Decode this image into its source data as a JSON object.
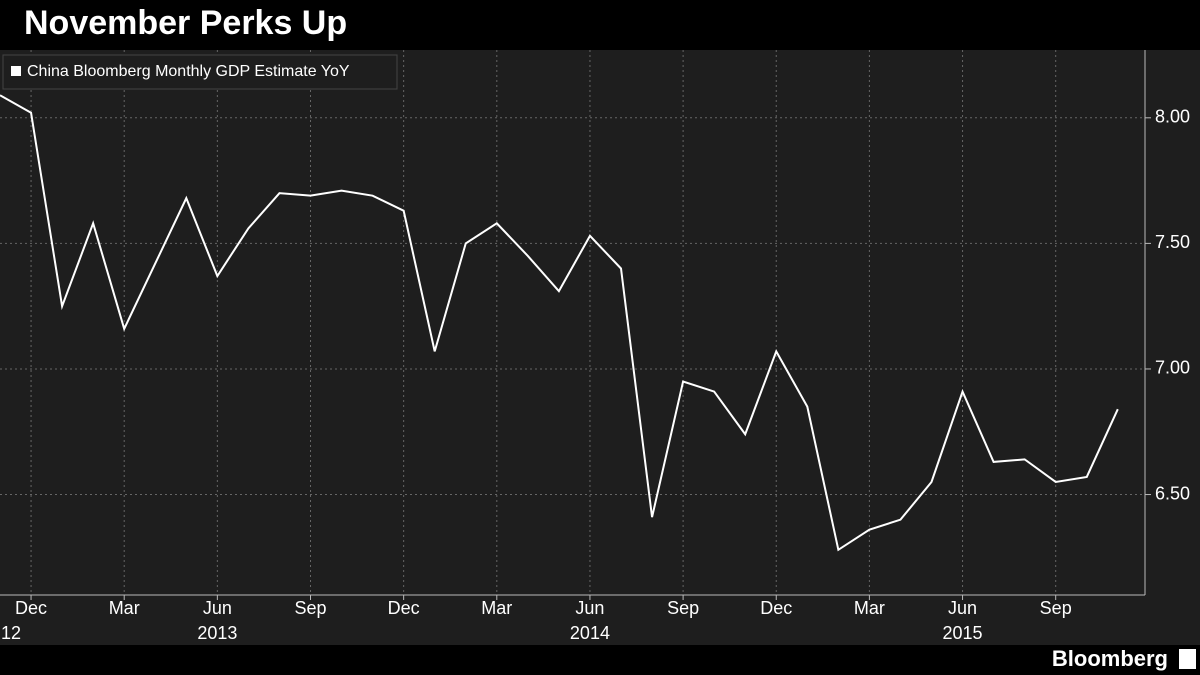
{
  "chart_data": {
    "type": "line",
    "title": "November Perks Up",
    "source": "Bloomberg",
    "categories": [
      null,
      "Dec",
      null,
      null,
      "Mar",
      null,
      null,
      "Jun",
      null,
      null,
      "Sep",
      null,
      null,
      "Dec",
      null,
      null,
      "Mar",
      null,
      null,
      "Jun",
      null,
      null,
      "Sep",
      null,
      null,
      "Dec",
      null,
      null,
      "Mar",
      null,
      null,
      "Jun",
      null,
      null,
      "Sep",
      null,
      null
    ],
    "years": [
      null,
      "12",
      null,
      null,
      null,
      null,
      null,
      "2013",
      null,
      null,
      null,
      null,
      null,
      null,
      null,
      null,
      null,
      null,
      null,
      "2014",
      null,
      null,
      null,
      null,
      null,
      null,
      null,
      null,
      null,
      null,
      null,
      "2015",
      null,
      null,
      null,
      null,
      null
    ],
    "series": [
      {
        "name": "China Bloomberg Monthly GDP Estimate YoY",
        "color": "#ffffff",
        "values": [
          8.09,
          8.02,
          7.25,
          7.58,
          7.16,
          7.42,
          7.68,
          7.37,
          7.56,
          7.7,
          7.69,
          7.71,
          7.69,
          7.63,
          7.07,
          7.5,
          7.58,
          7.45,
          7.31,
          7.53,
          7.4,
          6.41,
          6.95,
          6.91,
          6.74,
          7.07,
          6.85,
          6.28,
          6.36,
          6.4,
          6.55,
          6.91,
          6.63,
          6.64,
          6.55,
          6.57,
          6.84
        ]
      }
    ],
    "ylim": [
      6.1,
      8.27
    ],
    "yticks": [
      {
        "value": 6.5,
        "label": "6.50"
      },
      {
        "value": 7,
        "label": "7.00"
      },
      {
        "value": 7.5,
        "label": "7.50"
      },
      {
        "value": 8,
        "label": "8.00"
      }
    ],
    "grid": true,
    "legend": "top-left"
  }
}
